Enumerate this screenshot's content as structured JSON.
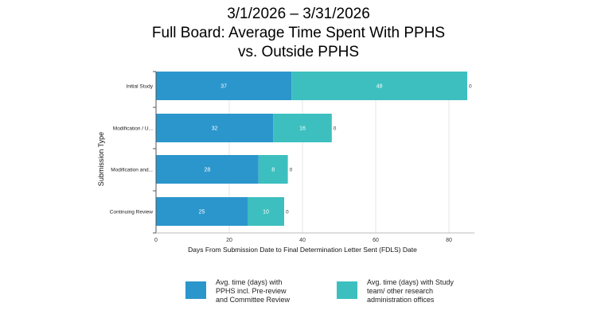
{
  "title": {
    "line1": "3/1/2026 – 3/31/2026",
    "line2": "Full Board: Average Time Spent With PPHS",
    "line3": "vs. Outside PPHS"
  },
  "colors": {
    "pphs": "#2b96cc",
    "outside": "#3dbfbf",
    "grid": "#e4e4e4",
    "axis": "#555555"
  },
  "chart_data": {
    "type": "bar",
    "orientation": "horizontal",
    "stacked": true,
    "categories": [
      "Initial Study",
      "Modification / U...",
      "Modification and...",
      "Continuing Review"
    ],
    "series": [
      {
        "name": "Avg. time (days) with PPHS incl. Pre-review and Committee Review",
        "values": [
          37,
          32,
          28,
          25
        ]
      },
      {
        "name": "Avg. time (days) with Study team/ other research administration offices",
        "values": [
          48,
          16,
          8,
          10
        ]
      }
    ],
    "end_labels": [
      0,
      0,
      0,
      0
    ],
    "xlabel": "Days From Submission Date to Final Determination Letter Sent (FDLS) Date",
    "ylabel": "Submission Type",
    "xticks": [
      0,
      20,
      40,
      60,
      80
    ],
    "xlim": [
      0,
      87
    ],
    "grid": true,
    "legend_position": "bottom"
  },
  "legend": {
    "pphs_label": "Avg. time (days) with PPHS incl. Pre-review and Committee Review",
    "outside_label": "Avg. time (days) with Study team/ other research administration offices"
  }
}
